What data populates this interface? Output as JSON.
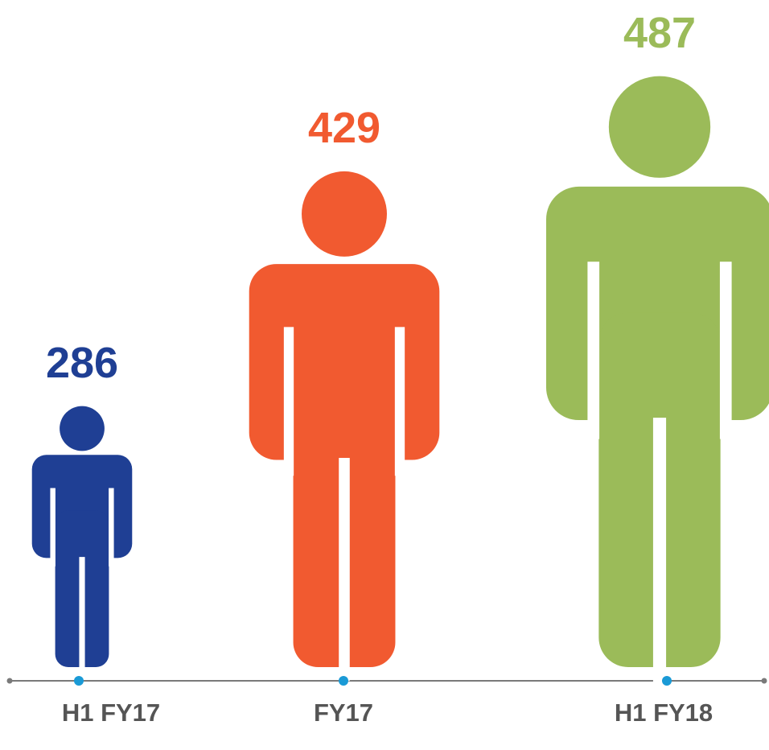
{
  "chart_data": {
    "type": "pictogram",
    "categories": [
      "H1 FY17",
      "FY17",
      "H1 FY18"
    ],
    "values": [
      286,
      429,
      487
    ],
    "colors": [
      "#1f3f94",
      "#f15a30",
      "#9bbb59"
    ]
  }
}
